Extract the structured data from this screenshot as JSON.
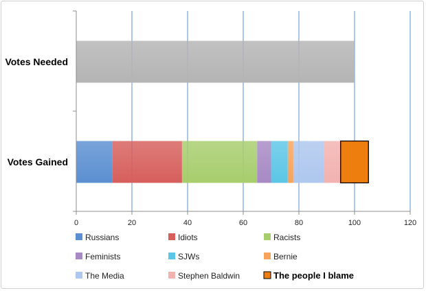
{
  "chart_data": {
    "type": "bar",
    "orientation": "horizontal",
    "stacked": true,
    "categories": [
      "Votes Needed",
      "Votes Gained"
    ],
    "xlim": [
      0,
      120
    ],
    "xticks": [
      0,
      20,
      40,
      60,
      80,
      100,
      120
    ],
    "grid": "vertical",
    "legend_position": "bottom",
    "series": [
      {
        "name": "Votes Needed",
        "show_in_legend": false,
        "color": "#b4b4b4",
        "values": [
          100,
          0
        ]
      },
      {
        "name": "Russians",
        "color": "#5b8fd1",
        "values": [
          0,
          13
        ]
      },
      {
        "name": "Idiots",
        "color": "#d65f5c",
        "values": [
          0,
          25
        ]
      },
      {
        "name": "Racists",
        "color": "#a7cd6d",
        "values": [
          0,
          27
        ]
      },
      {
        "name": "Feminists",
        "color": "#a789c4",
        "values": [
          0,
          5
        ]
      },
      {
        "name": "SJWs",
        "color": "#5cc6e6",
        "values": [
          0,
          6
        ]
      },
      {
        "name": "Bernie",
        "color": "#f6a35c",
        "values": [
          0,
          2
        ]
      },
      {
        "name": "The Media",
        "color": "#aec7ee",
        "values": [
          0,
          11
        ]
      },
      {
        "name": "Stephen Baldwin",
        "color": "#f2b2b0",
        "values": [
          0,
          6
        ]
      },
      {
        "name": "The people I blame",
        "color": "#ee7f0f",
        "highlight": true,
        "values": [
          0,
          10
        ]
      }
    ]
  }
}
